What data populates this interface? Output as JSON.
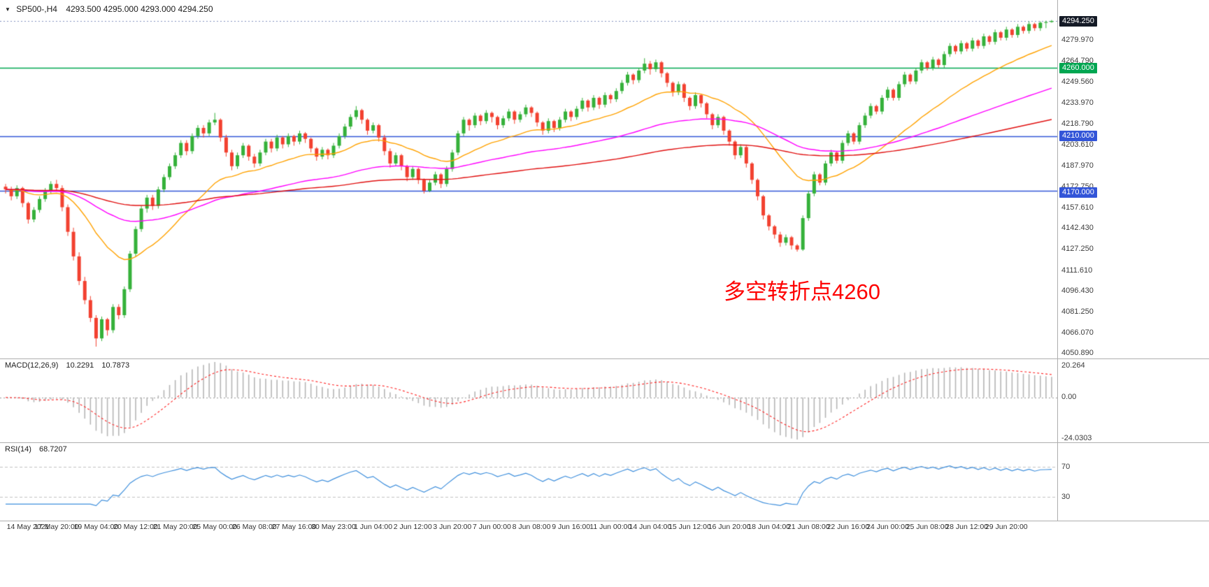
{
  "window": {
    "symbol": "SP500-,H4",
    "ohlc_line": "4293.500 4295.000 4293.000 4294.250",
    "open": "4293.500",
    "high": "4295.000",
    "low": "4293.000",
    "close": "4294.250"
  },
  "icons": {
    "collapse": "▼"
  },
  "colors": {
    "up": "#35b13a",
    "down": "#f24130",
    "macd_hist": "#b5b5b5",
    "macd_signal": "#ff2222",
    "rsi": "#3f8fdc",
    "axis_text": "#3c3c3c",
    "last_price_line": "#8090c0"
  },
  "chart_data": {
    "type": "candlestick",
    "title": "SP500-,H4",
    "timeframe": "H4",
    "price_scale": {
      "min": 4047.3,
      "max": 4309.6
    },
    "axis_ticks": [
      "4279.970",
      "4264.790",
      "4249.560",
      "4233.970",
      "4218.790",
      "4203.610",
      "4187.970",
      "4172.750",
      "4157.610",
      "4142.430",
      "4127.250",
      "4111.610",
      "4096.430",
      "4081.250",
      "4066.070",
      "4050.890"
    ],
    "price_tags": [
      {
        "label": "4294.250",
        "value": 4294.25,
        "type": "last-price",
        "bg": "#141a26"
      },
      {
        "label": "4260.000",
        "value": 4260,
        "type": "level",
        "bg": "#00a651"
      },
      {
        "label": "4210.000",
        "value": 4210,
        "type": "level",
        "bg": "#3355d8"
      },
      {
        "label": "4170.000",
        "value": 4170,
        "type": "level",
        "bg": "#3355d8"
      }
    ],
    "levels": [
      {
        "value": 4260,
        "color": "#00a651",
        "style": "solid"
      },
      {
        "value": 4210,
        "color": "#3355d8",
        "style": "solid"
      },
      {
        "value": 4170,
        "color": "#3355d8",
        "style": "solid"
      },
      {
        "value": 4294.25,
        "color": "#8090c0",
        "style": "dotted"
      }
    ],
    "annotation": {
      "text": "多空转折点4260",
      "color": "#fe0000"
    },
    "moving_averages": [
      {
        "name": "fast",
        "period": 24,
        "color": "#ffa200"
      },
      {
        "name": "medium",
        "period": 72,
        "color": "#ff00ff"
      },
      {
        "name": "slow",
        "period": 160,
        "color": "#e01010"
      }
    ],
    "macd": {
      "label": "MACD(12,26,9)",
      "value_main": "10.2291",
      "value_signal": "10.7873",
      "params": [
        12,
        26,
        9
      ],
      "axis_max": "20.264",
      "axis_zero": "0.00",
      "axis_min": "-24.0303"
    },
    "rsi": {
      "label": "RSI(14)",
      "value": "68.7207",
      "period": 14,
      "levels": [
        70,
        30
      ]
    },
    "date_labels": [
      {
        "t": "14 May 2021",
        "i": 2
      },
      {
        "t": "17 May 20:00",
        "i": 9
      },
      {
        "t": "19 May 04:00",
        "i": 16
      },
      {
        "t": "20 May 12:00",
        "i": 23
      },
      {
        "t": "21 May 20:00",
        "i": 30
      },
      {
        "t": "25 May 00:00",
        "i": 37
      },
      {
        "t": "26 May 08:00",
        "i": 44
      },
      {
        "t": "27 May 16:00",
        "i": 51
      },
      {
        "t": "30 May 23:00",
        "i": 58
      },
      {
        "t": "1 Jun 04:00",
        "i": 65
      },
      {
        "t": "2 Jun 12:00",
        "i": 72
      },
      {
        "t": "3 Jun 20:00",
        "i": 79
      },
      {
        "t": "7 Jun 00:00",
        "i": 86
      },
      {
        "t": "8 Jun 08:00",
        "i": 93
      },
      {
        "t": "9 Jun 16:00",
        "i": 100
      },
      {
        "t": "11 Jun 00:00",
        "i": 107
      },
      {
        "t": "14 Jun 04:00",
        "i": 114
      },
      {
        "t": "15 Jun 12:00",
        "i": 121
      },
      {
        "t": "16 Jun 20:00",
        "i": 128
      },
      {
        "t": "18 Jun 04:00",
        "i": 135
      },
      {
        "t": "21 Jun 08:00",
        "i": 142
      },
      {
        "t": "22 Jun 16:00",
        "i": 149
      },
      {
        "t": "24 Jun 00:00",
        "i": 156
      },
      {
        "t": "25 Jun 08:00",
        "i": 163
      },
      {
        "t": "28 Jun 12:00",
        "i": 170
      },
      {
        "t": "29 Jun 20:00",
        "i": 177
      }
    ],
    "candles": [
      [
        4173,
        4175,
        4168,
        4171
      ],
      [
        4171,
        4173,
        4163,
        4166
      ],
      [
        4166,
        4174,
        4164,
        4172
      ],
      [
        4172,
        4173,
        4158,
        4161
      ],
      [
        4161,
        4162,
        4146,
        4149
      ],
      [
        4149,
        4158,
        4147,
        4156
      ],
      [
        4156,
        4166,
        4154,
        4164
      ],
      [
        4164,
        4172,
        4162,
        4170
      ],
      [
        4170,
        4177,
        4168,
        4175
      ],
      [
        4175,
        4178,
        4170,
        4172
      ],
      [
        4172,
        4174,
        4155,
        4158
      ],
      [
        4158,
        4160,
        4137,
        4140
      ],
      [
        4140,
        4143,
        4119,
        4122
      ],
      [
        4122,
        4125,
        4101,
        4104
      ],
      [
        4104,
        4107,
        4087,
        4090
      ],
      [
        4090,
        4093,
        4074,
        4077
      ],
      [
        4077,
        4079,
        4056,
        4062
      ],
      [
        4062,
        4078,
        4060,
        4076
      ],
      [
        4076,
        4077,
        4064,
        4068
      ],
      [
        4068,
        4087,
        4066,
        4085
      ],
      [
        4085,
        4087,
        4076,
        4079
      ],
      [
        4079,
        4100,
        4077,
        4098
      ],
      [
        4098,
        4126,
        4096,
        4124
      ],
      [
        4124,
        4144,
        4122,
        4142
      ],
      [
        4142,
        4159,
        4140,
        4157
      ],
      [
        4157,
        4167,
        4154,
        4165
      ],
      [
        4165,
        4167,
        4156,
        4159
      ],
      [
        4159,
        4173,
        4157,
        4171
      ],
      [
        4171,
        4182,
        4169,
        4180
      ],
      [
        4180,
        4190,
        4178,
        4188
      ],
      [
        4188,
        4198,
        4186,
        4196
      ],
      [
        4196,
        4207,
        4194,
        4205
      ],
      [
        4205,
        4207,
        4196,
        4199
      ],
      [
        4199,
        4212,
        4197,
        4210
      ],
      [
        4210,
        4218,
        4208,
        4216
      ],
      [
        4216,
        4218,
        4209,
        4212
      ],
      [
        4212,
        4222,
        4210,
        4220
      ],
      [
        4220,
        4227,
        4218,
        4222
      ],
      [
        4222,
        4223,
        4206,
        4209
      ],
      [
        4209,
        4211,
        4195,
        4198
      ],
      [
        4198,
        4200,
        4185,
        4188
      ],
      [
        4188,
        4198,
        4186,
        4196
      ],
      [
        4196,
        4205,
        4194,
        4203
      ],
      [
        4203,
        4204,
        4192,
        4195
      ],
      [
        4195,
        4197,
        4187,
        4190
      ],
      [
        4190,
        4200,
        4188,
        4198
      ],
      [
        4198,
        4208,
        4196,
        4206
      ],
      [
        4206,
        4208,
        4198,
        4201
      ],
      [
        4201,
        4211,
        4199,
        4209
      ],
      [
        4209,
        4210,
        4201,
        4204
      ],
      [
        4204,
        4212,
        4202,
        4210
      ],
      [
        4210,
        4211,
        4203,
        4206
      ],
      [
        4206,
        4214,
        4204,
        4212
      ],
      [
        4212,
        4213,
        4205,
        4208
      ],
      [
        4208,
        4209,
        4198,
        4201
      ],
      [
        4201,
        4202,
        4192,
        4195
      ],
      [
        4195,
        4202,
        4193,
        4200
      ],
      [
        4200,
        4201,
        4193,
        4196
      ],
      [
        4196,
        4205,
        4194,
        4203
      ],
      [
        4203,
        4212,
        4201,
        4210
      ],
      [
        4210,
        4219,
        4208,
        4217
      ],
      [
        4217,
        4226,
        4215,
        4224
      ],
      [
        4224,
        4232,
        4222,
        4229
      ],
      [
        4229,
        4230,
        4219,
        4222
      ],
      [
        4222,
        4223,
        4211,
        4214
      ],
      [
        4214,
        4220,
        4212,
        4218
      ],
      [
        4218,
        4219,
        4206,
        4209
      ],
      [
        4209,
        4211,
        4196,
        4199
      ],
      [
        4199,
        4201,
        4187,
        4190
      ],
      [
        4190,
        4198,
        4188,
        4196
      ],
      [
        4196,
        4197,
        4185,
        4188
      ],
      [
        4188,
        4189,
        4177,
        4180
      ],
      [
        4180,
        4188,
        4178,
        4186
      ],
      [
        4186,
        4187,
        4175,
        4178
      ],
      [
        4178,
        4179,
        4168,
        4170
      ],
      [
        4170,
        4178,
        4169,
        4176
      ],
      [
        4176,
        4184,
        4174,
        4182
      ],
      [
        4182,
        4183,
        4172,
        4175
      ],
      [
        4175,
        4188,
        4173,
        4186
      ],
      [
        4186,
        4200,
        4184,
        4198
      ],
      [
        4198,
        4214,
        4196,
        4212
      ],
      [
        4212,
        4224,
        4210,
        4222
      ],
      [
        4222,
        4223,
        4214,
        4218
      ],
      [
        4218,
        4227,
        4216,
        4225
      ],
      [
        4225,
        4226,
        4218,
        4221
      ],
      [
        4221,
        4229,
        4219,
        4227
      ],
      [
        4227,
        4228,
        4220,
        4224
      ],
      [
        4224,
        4225,
        4215,
        4218
      ],
      [
        4218,
        4225,
        4216,
        4223
      ],
      [
        4223,
        4230,
        4221,
        4228
      ],
      [
        4228,
        4229,
        4219,
        4222
      ],
      [
        4222,
        4228,
        4220,
        4226
      ],
      [
        4226,
        4233,
        4224,
        4231
      ],
      [
        4231,
        4232,
        4224,
        4227
      ],
      [
        4227,
        4228,
        4217,
        4220
      ],
      [
        4220,
        4221,
        4211,
        4214
      ],
      [
        4214,
        4223,
        4212,
        4221
      ],
      [
        4221,
        4222,
        4213,
        4216
      ],
      [
        4216,
        4224,
        4214,
        4222
      ],
      [
        4222,
        4230,
        4220,
        4228
      ],
      [
        4228,
        4229,
        4221,
        4224
      ],
      [
        4224,
        4232,
        4222,
        4230
      ],
      [
        4230,
        4238,
        4228,
        4236
      ],
      [
        4236,
        4237,
        4228,
        4231
      ],
      [
        4231,
        4240,
        4229,
        4238
      ],
      [
        4238,
        4239,
        4230,
        4233
      ],
      [
        4233,
        4242,
        4231,
        4240
      ],
      [
        4240,
        4241,
        4234,
        4237
      ],
      [
        4237,
        4245,
        4235,
        4243
      ],
      [
        4243,
        4251,
        4241,
        4249
      ],
      [
        4249,
        4257,
        4247,
        4255
      ],
      [
        4255,
        4256,
        4248,
        4251
      ],
      [
        4251,
        4260,
        4249,
        4258
      ],
      [
        4258,
        4267,
        4256,
        4263
      ],
      [
        4263,
        4265,
        4255,
        4259
      ],
      [
        4259,
        4266,
        4257,
        4264
      ],
      [
        4264,
        4265,
        4253,
        4256
      ],
      [
        4256,
        4257,
        4246,
        4249
      ],
      [
        4249,
        4250,
        4239,
        4242
      ],
      [
        4242,
        4250,
        4240,
        4248
      ],
      [
        4248,
        4249,
        4235,
        4238
      ],
      [
        4238,
        4239,
        4229,
        4232
      ],
      [
        4232,
        4242,
        4230,
        4240
      ],
      [
        4240,
        4241,
        4231,
        4234
      ],
      [
        4234,
        4235,
        4223,
        4226
      ],
      [
        4226,
        4227,
        4215,
        4218
      ],
      [
        4218,
        4226,
        4216,
        4224
      ],
      [
        4224,
        4225,
        4211,
        4214
      ],
      [
        4214,
        4215,
        4203,
        4206
      ],
      [
        4206,
        4207,
        4193,
        4196
      ],
      [
        4196,
        4204,
        4194,
        4202
      ],
      [
        4202,
        4203,
        4187,
        4190
      ],
      [
        4190,
        4191,
        4175,
        4178
      ],
      [
        4178,
        4179,
        4163,
        4166
      ],
      [
        4166,
        4167,
        4149,
        4152
      ],
      [
        4152,
        4153,
        4141,
        4144
      ],
      [
        4144,
        4145,
        4135,
        4138
      ],
      [
        4138,
        4140,
        4129,
        4132
      ],
      [
        4132,
        4138,
        4130,
        4136
      ],
      [
        4136,
        4137,
        4127,
        4130
      ],
      [
        4130,
        4131,
        4125.5,
        4127
      ],
      [
        4127,
        4152,
        4126,
        4150
      ],
      [
        4150,
        4170,
        4148,
        4168
      ],
      [
        4168,
        4184,
        4166,
        4182
      ],
      [
        4182,
        4183,
        4174,
        4176
      ],
      [
        4176,
        4192,
        4174,
        4190
      ],
      [
        4190,
        4200,
        4188,
        4198
      ],
      [
        4198,
        4199,
        4190,
        4192
      ],
      [
        4192,
        4207,
        4190,
        4205
      ],
      [
        4205,
        4214,
        4203,
        4212
      ],
      [
        4212,
        4213,
        4204,
        4206
      ],
      [
        4206,
        4220,
        4204,
        4218
      ],
      [
        4218,
        4227,
        4216,
        4225
      ],
      [
        4225,
        4234,
        4223,
        4232
      ],
      [
        4232,
        4233,
        4226,
        4228
      ],
      [
        4228,
        4240,
        4226,
        4238
      ],
      [
        4238,
        4246,
        4236,
        4244
      ],
      [
        4244,
        4245,
        4236,
        4238
      ],
      [
        4238,
        4250,
        4236,
        4248
      ],
      [
        4248,
        4257,
        4246,
        4255
      ],
      [
        4255,
        4256,
        4248,
        4250
      ],
      [
        4250,
        4260,
        4248,
        4258
      ],
      [
        4258,
        4266,
        4256,
        4264
      ],
      [
        4264,
        4265,
        4258,
        4260
      ],
      [
        4260,
        4268,
        4258,
        4266
      ],
      [
        4266,
        4267,
        4260,
        4262
      ],
      [
        4262,
        4272,
        4260,
        4270
      ],
      [
        4270,
        4278,
        4268,
        4276
      ],
      [
        4276,
        4277,
        4270,
        4272
      ],
      [
        4272,
        4280,
        4270,
        4278
      ],
      [
        4278,
        4279,
        4272,
        4274
      ],
      [
        4274,
        4282,
        4272,
        4280
      ],
      [
        4280,
        4281,
        4274,
        4276
      ],
      [
        4276,
        4285,
        4274,
        4283
      ],
      [
        4283,
        4284,
        4277,
        4279
      ],
      [
        4279,
        4288,
        4277,
        4286
      ],
      [
        4286,
        4287,
        4280,
        4282
      ],
      [
        4282,
        4290,
        4280,
        4288
      ],
      [
        4288,
        4289,
        4282,
        4284
      ],
      [
        4284,
        4292,
        4282,
        4290
      ],
      [
        4290,
        4291,
        4285,
        4287
      ],
      [
        4287,
        4294,
        4285,
        4292
      ],
      [
        4292,
        4293,
        4287,
        4289
      ],
      [
        4289,
        4294,
        4287,
        4293
      ],
      [
        4293,
        4294.5,
        4289,
        4293.5
      ],
      [
        4293.5,
        4295,
        4293,
        4294.25
      ]
    ]
  }
}
